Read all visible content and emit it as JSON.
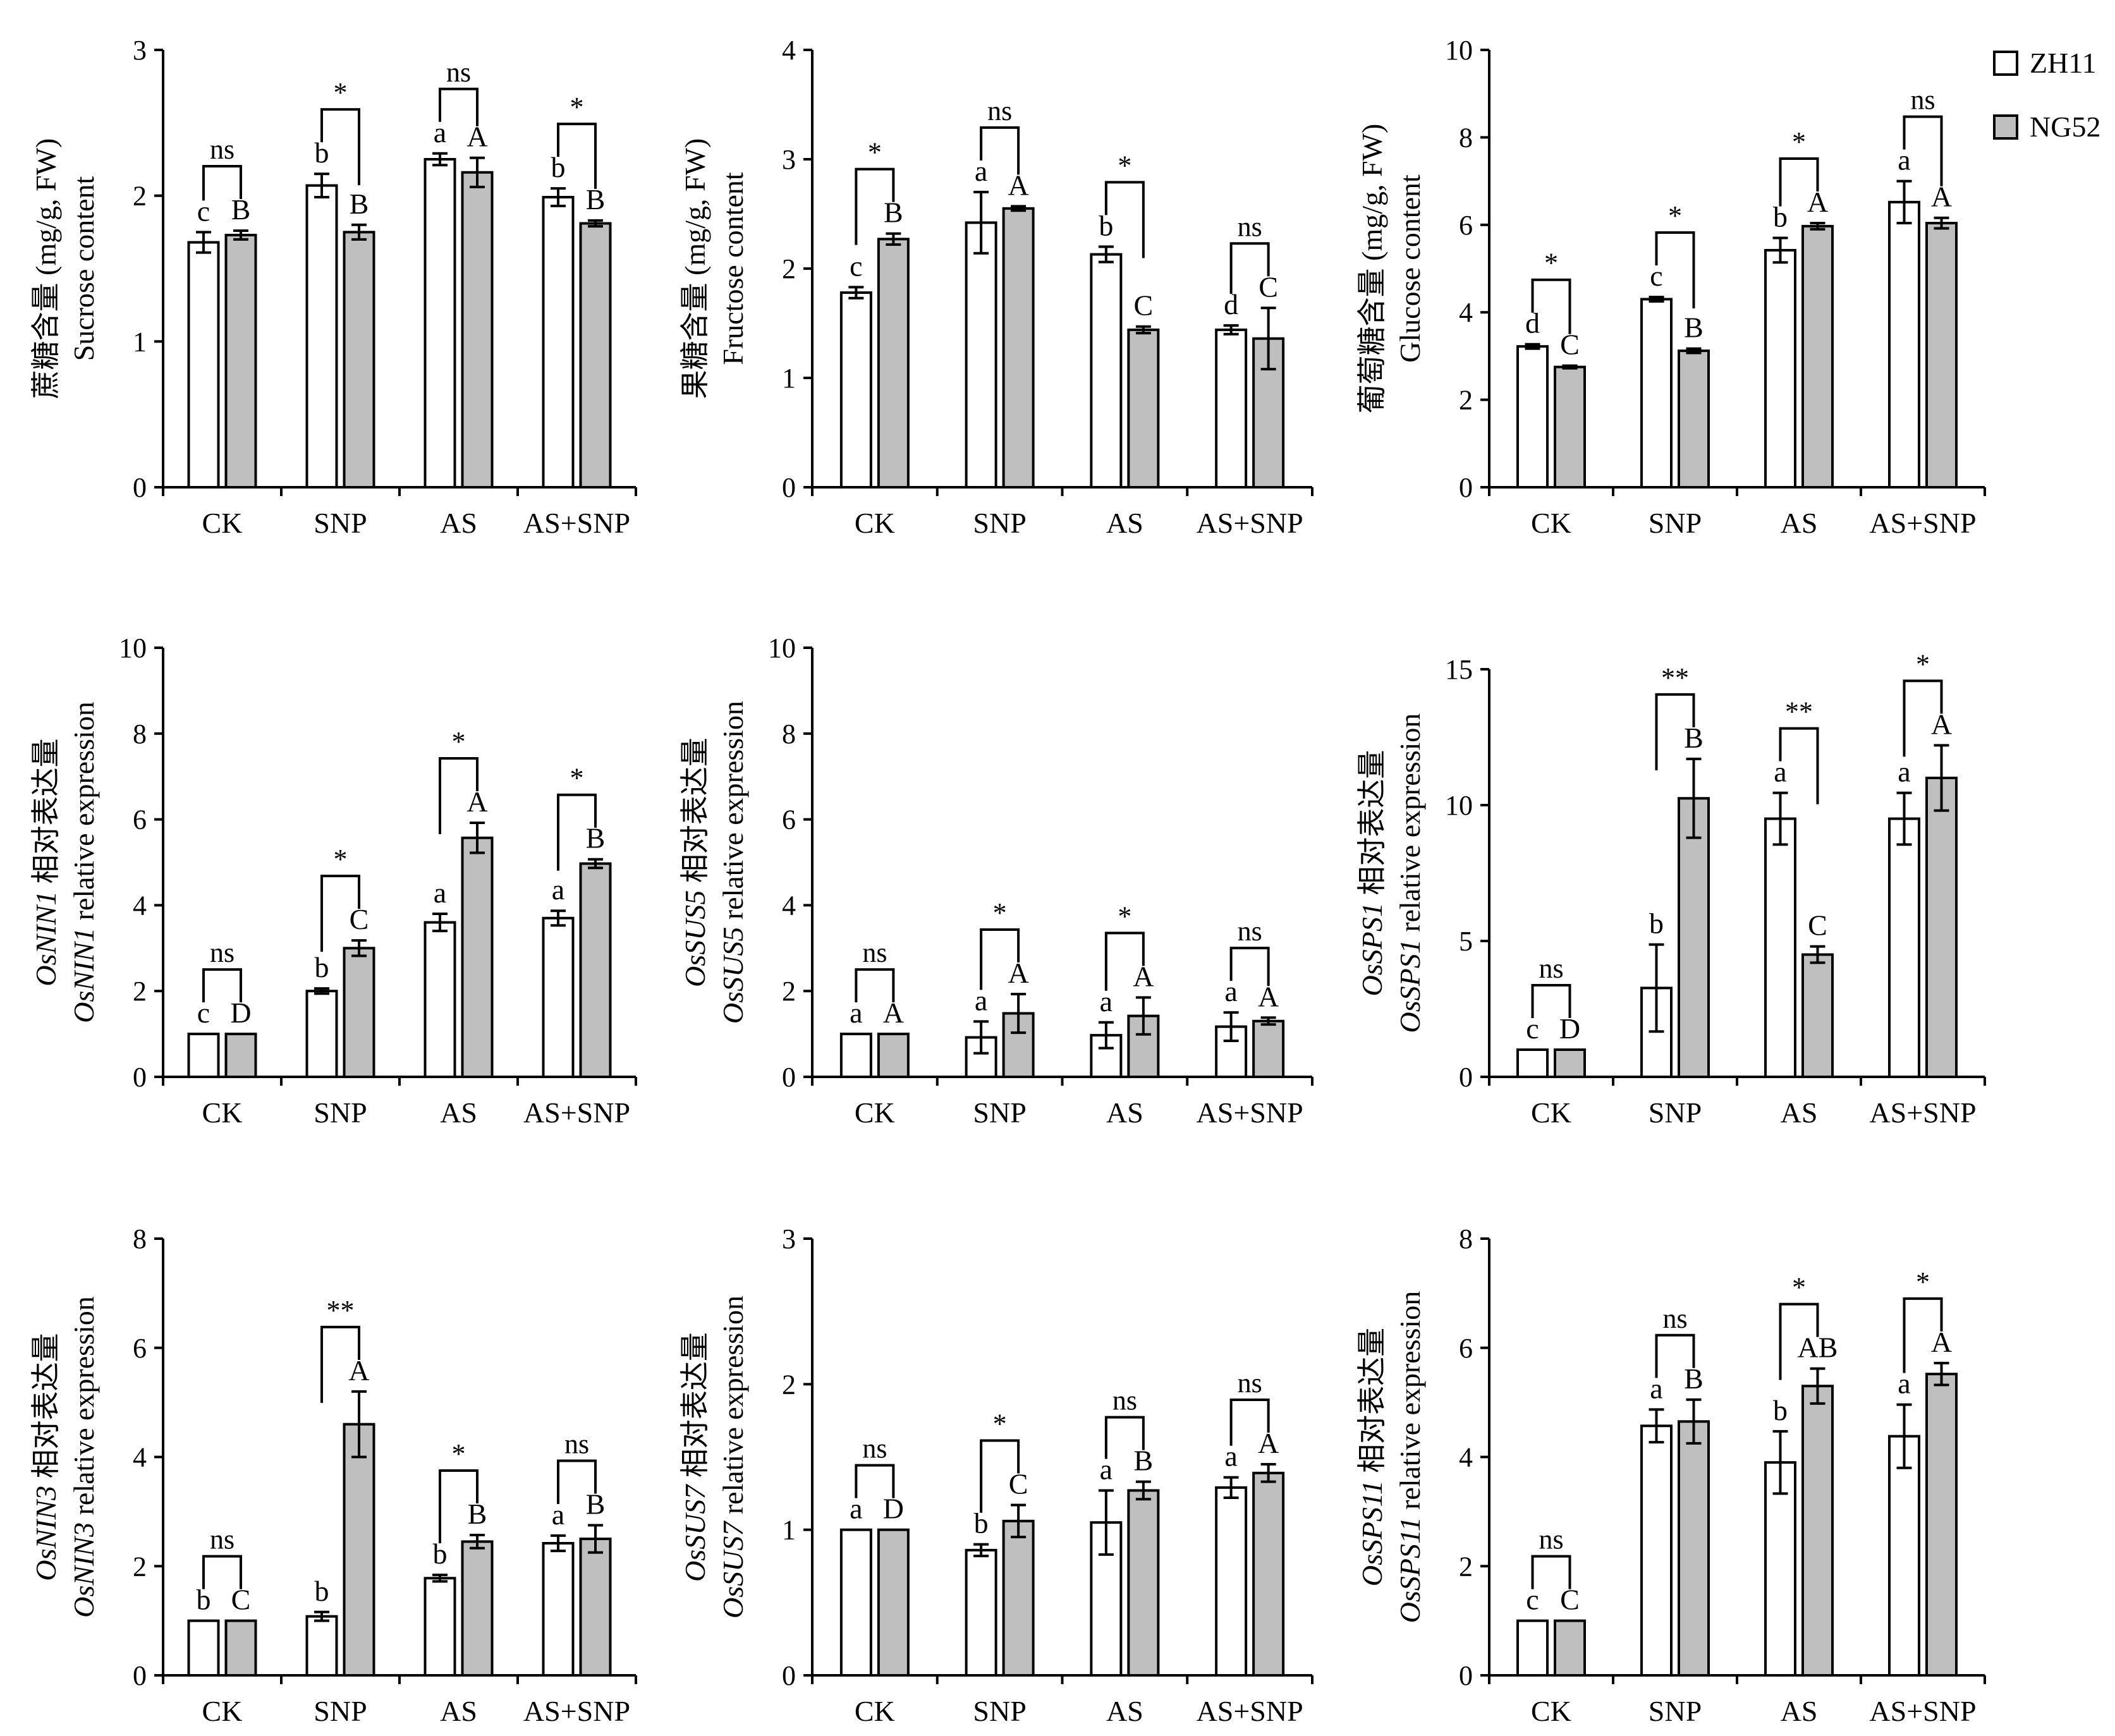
{
  "chart_data": [
    {
      "type": "bar",
      "categories": [
        "CK",
        "SNP",
        "AS",
        "AS+SNP"
      ],
      "ylabel_cn": "蔗糖含量 (mg/g, FW)",
      "ylabel_en": "Sucrose content",
      "ylim": [
        0,
        3
      ],
      "yticks": [
        "0",
        "1",
        "2",
        "3"
      ],
      "series": [
        {
          "name": "ZH11",
          "values": [
            1.68,
            2.07,
            2.25,
            1.99
          ],
          "errors": [
            0.07,
            0.08,
            0.04,
            0.06
          ],
          "labels": [
            "c",
            "b",
            "a",
            "b"
          ]
        },
        {
          "name": "NG52",
          "values": [
            1.73,
            1.75,
            2.16,
            1.81
          ],
          "errors": [
            0.03,
            0.05,
            0.1,
            0.02
          ],
          "labels": [
            "B",
            "B",
            "A",
            "B"
          ]
        }
      ],
      "significance": [
        "ns",
        "*",
        "ns",
        "*"
      ]
    },
    {
      "type": "bar",
      "categories": [
        "CK",
        "SNP",
        "AS",
        "AS+SNP"
      ],
      "ylabel_cn": "果糖含量 (mg/g, FW)",
      "ylabel_en": "Fructose content",
      "ylim": [
        0,
        4
      ],
      "yticks": [
        "0",
        "1",
        "2",
        "3",
        "4"
      ],
      "series": [
        {
          "name": "ZH11",
          "values": [
            1.78,
            2.42,
            2.13,
            1.44
          ],
          "errors": [
            0.05,
            0.28,
            0.07,
            0.04
          ],
          "labels": [
            "c",
            "a",
            "b",
            "d"
          ]
        },
        {
          "name": "NG52",
          "values": [
            2.27,
            2.55,
            1.44,
            1.36
          ],
          "errors": [
            0.05,
            0.02,
            0.03,
            0.28
          ],
          "labels": [
            "B",
            "A",
            "C",
            "C"
          ]
        }
      ],
      "significance": [
        "*",
        "ns",
        "*",
        "ns"
      ]
    },
    {
      "type": "bar",
      "categories": [
        "CK",
        "SNP",
        "AS",
        "AS+SNP"
      ],
      "ylabel_cn": "葡萄糖含量 (mg/g, FW)",
      "ylabel_en": "Glucose content",
      "ylim": [
        0,
        10
      ],
      "yticks": [
        "0",
        "2",
        "4",
        "6",
        "8",
        "10"
      ],
      "series": [
        {
          "name": "ZH11",
          "values": [
            3.22,
            4.3,
            5.42,
            6.52
          ],
          "errors": [
            0.05,
            0.05,
            0.28,
            0.48
          ],
          "labels": [
            "d",
            "c",
            "b",
            "a"
          ]
        },
        {
          "name": "NG52",
          "values": [
            2.75,
            3.12,
            5.97,
            6.04
          ],
          "errors": [
            0.03,
            0.05,
            0.07,
            0.12
          ],
          "labels": [
            "C",
            "B",
            "A",
            "A"
          ]
        }
      ],
      "significance": [
        "*",
        "*",
        "*",
        "ns"
      ],
      "legend": {
        "placement": "top-right",
        "items": [
          "ZH11",
          "NG52"
        ]
      }
    },
    {
      "type": "bar",
      "categories": [
        "CK",
        "SNP",
        "AS",
        "AS+SNP"
      ],
      "ylabel_gene": "OsNIN1",
      "ylabel_cn": " 相对表达量",
      "ylabel_en": " relative expression",
      "ylim": [
        0,
        10
      ],
      "yticks": [
        "0",
        "2",
        "4",
        "6",
        "8",
        "10"
      ],
      "series": [
        {
          "name": "ZH11",
          "values": [
            1.0,
            2.0,
            3.6,
            3.7
          ],
          "errors": [
            0.0,
            0.06,
            0.2,
            0.17
          ],
          "labels": [
            "c",
            "b",
            "a",
            "a"
          ]
        },
        {
          "name": "NG52",
          "values": [
            1.0,
            3.0,
            5.57,
            4.97
          ],
          "errors": [
            0.0,
            0.18,
            0.35,
            0.1
          ],
          "labels": [
            "D",
            "C",
            "A",
            "B"
          ]
        }
      ],
      "significance": [
        "ns",
        "*",
        "*",
        "*"
      ]
    },
    {
      "type": "bar",
      "categories": [
        "CK",
        "SNP",
        "AS",
        "AS+SNP"
      ],
      "ylabel_gene": "OsSUS5",
      "ylabel_cn": " 相对表达量",
      "ylabel_en": " relative expression",
      "ylim": [
        0,
        10
      ],
      "yticks": [
        "0",
        "2",
        "4",
        "6",
        "8",
        "10"
      ],
      "series": [
        {
          "name": "ZH11",
          "values": [
            1.0,
            0.92,
            0.97,
            1.17
          ],
          "errors": [
            0.0,
            0.37,
            0.3,
            0.33
          ],
          "labels": [
            "a",
            "a",
            "a",
            "a"
          ]
        },
        {
          "name": "NG52",
          "values": [
            1.0,
            1.48,
            1.42,
            1.3
          ],
          "errors": [
            0.0,
            0.45,
            0.43,
            0.08
          ],
          "labels": [
            "A",
            "A",
            "A",
            "A"
          ]
        }
      ],
      "significance": [
        "ns",
        "*",
        "*",
        "ns"
      ]
    },
    {
      "type": "bar",
      "categories": [
        "CK",
        "SNP",
        "AS",
        "AS+SNP"
      ],
      "ylabel_gene": "OsSPS1",
      "ylabel_cn": " 相对表达量",
      "ylabel_en": " relative expression",
      "ylim": [
        0,
        15
      ],
      "yticks": [
        "0",
        "5",
        "10",
        "15"
      ],
      "series": [
        {
          "name": "ZH11",
          "values": [
            1.0,
            3.27,
            9.5,
            9.5
          ],
          "errors": [
            0.0,
            1.6,
            0.95,
            0.95
          ],
          "labels": [
            "c",
            "b",
            "a",
            "a"
          ]
        },
        {
          "name": "NG52",
          "values": [
            1.0,
            10.25,
            4.5,
            11.0
          ],
          "errors": [
            0.0,
            1.45,
            0.3,
            1.2
          ],
          "labels": [
            "D",
            "B",
            "C",
            "A"
          ]
        }
      ],
      "significance": [
        "ns",
        "**",
        "**",
        "*"
      ]
    },
    {
      "type": "bar",
      "categories": [
        "CK",
        "SNP",
        "AS",
        "AS+SNP"
      ],
      "ylabel_gene": "OsNIN3",
      "ylabel_cn": " 相对表达量",
      "ylabel_en": " relative expression",
      "ylim": [
        0,
        8
      ],
      "yticks": [
        "0",
        "2",
        "4",
        "6",
        "8"
      ],
      "series": [
        {
          "name": "ZH11",
          "values": [
            1.0,
            1.08,
            1.78,
            2.42
          ],
          "errors": [
            0.0,
            0.08,
            0.06,
            0.14
          ],
          "labels": [
            "b",
            "b",
            "b",
            "a"
          ]
        },
        {
          "name": "NG52",
          "values": [
            1.0,
            4.6,
            2.45,
            2.5
          ],
          "errors": [
            0.0,
            0.6,
            0.12,
            0.25
          ],
          "labels": [
            "C",
            "A",
            "B",
            "B"
          ]
        }
      ],
      "significance": [
        "ns",
        "**",
        "*",
        "ns"
      ]
    },
    {
      "type": "bar",
      "categories": [
        "CK",
        "SNP",
        "AS",
        "AS+SNP"
      ],
      "ylabel_gene": "OsSUS7",
      "ylabel_cn": " 相对表达量",
      "ylabel_en": " relative expression",
      "ylim": [
        0,
        3
      ],
      "yticks": [
        "0",
        "1",
        "2",
        "3"
      ],
      "series": [
        {
          "name": "ZH11",
          "values": [
            1.0,
            0.86,
            1.05,
            1.29
          ],
          "errors": [
            0.0,
            0.04,
            0.22,
            0.07
          ],
          "labels": [
            "a",
            "b",
            "a",
            "a"
          ]
        },
        {
          "name": "NG52",
          "values": [
            1.0,
            1.06,
            1.27,
            1.39
          ],
          "errors": [
            0.0,
            0.11,
            0.06,
            0.06
          ],
          "labels": [
            "D",
            "C",
            "B",
            "A"
          ]
        }
      ],
      "significance": [
        "ns",
        "*",
        "ns",
        "ns"
      ]
    },
    {
      "type": "bar",
      "categories": [
        "CK",
        "SNP",
        "AS",
        "AS+SNP"
      ],
      "ylabel_gene": "OsSPS11",
      "ylabel_cn": " 相对表达量",
      "ylabel_en": " relative expression",
      "ylim": [
        0,
        8
      ],
      "yticks": [
        "0",
        "2",
        "4",
        "6",
        "8"
      ],
      "series": [
        {
          "name": "ZH11",
          "values": [
            1.0,
            4.57,
            3.9,
            4.38
          ],
          "errors": [
            0.0,
            0.3,
            0.57,
            0.58
          ],
          "labels": [
            "c",
            "a",
            "b",
            "a"
          ]
        },
        {
          "name": "NG52",
          "values": [
            1.0,
            4.65,
            5.3,
            5.52
          ],
          "errors": [
            0.0,
            0.4,
            0.32,
            0.2
          ],
          "labels": [
            "C",
            "B",
            "AB",
            "A"
          ]
        }
      ],
      "significance": [
        "ns",
        "ns",
        "*",
        "*"
      ]
    }
  ],
  "colors": {
    "zh11_fill": "#ffffff",
    "ng52_fill": "#bfbfbf",
    "stroke": "#000000"
  }
}
